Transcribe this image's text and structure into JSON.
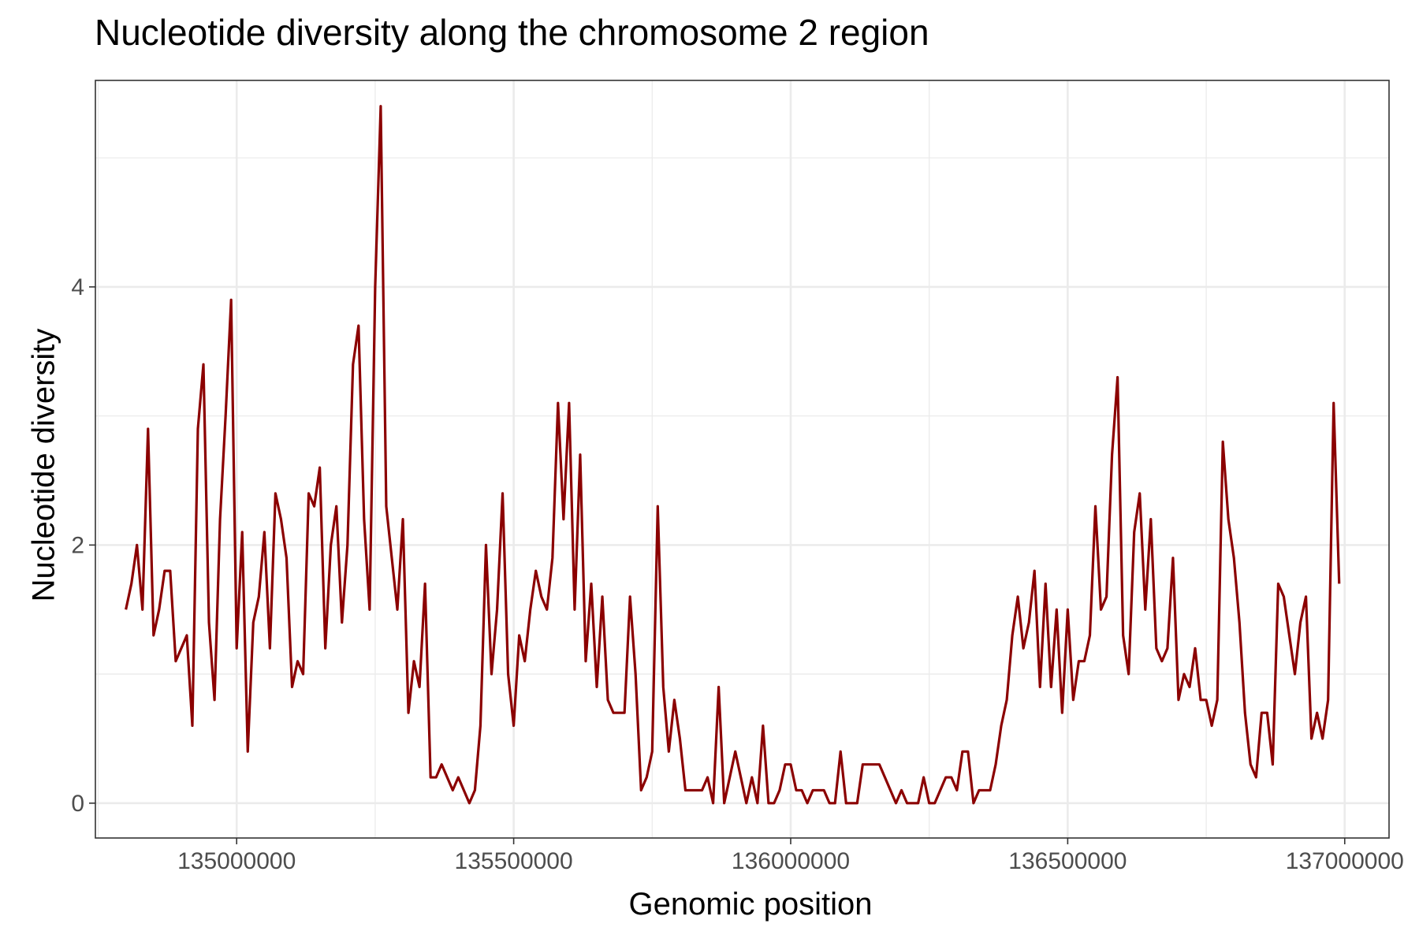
{
  "chart_data": {
    "type": "line",
    "title": "Nucleotide diversity along the chromosome 2 region",
    "xlabel": "Genomic position",
    "ylabel": "Nucleotide diversity",
    "xlim": [
      134745000,
      137080000
    ],
    "ylim": [
      -0.27,
      5.6
    ],
    "x_ticks": [
      135000000,
      135500000,
      136000000,
      136500000,
      137000000
    ],
    "x_tick_labels": [
      "135000000",
      "135500000",
      "136000000",
      "136500000",
      "137000000"
    ],
    "y_ticks": [
      0,
      2,
      4
    ],
    "y_tick_labels": [
      "0",
      "2",
      "4"
    ],
    "grid": true,
    "legend": "none",
    "series": [
      {
        "color": "#8b0000",
        "x_start": 134800000,
        "x_step": 10000,
        "values": [
          1.5,
          1.7,
          2.0,
          1.5,
          2.9,
          1.3,
          1.5,
          1.8,
          1.8,
          1.1,
          1.2,
          1.3,
          0.6,
          2.9,
          3.4,
          1.4,
          0.8,
          2.2,
          3.0,
          3.9,
          1.2,
          2.1,
          0.4,
          1.4,
          1.6,
          2.1,
          1.2,
          2.4,
          2.2,
          1.9,
          0.9,
          1.1,
          1.0,
          2.4,
          2.3,
          2.6,
          1.2,
          2.0,
          2.3,
          1.4,
          2.0,
          3.4,
          3.7,
          2.2,
          1.5,
          4.0,
          5.4,
          2.3,
          1.9,
          1.5,
          2.2,
          0.7,
          1.1,
          0.9,
          1.7,
          0.2,
          0.2,
          0.3,
          0.2,
          0.1,
          0.2,
          0.1,
          0.0,
          0.1,
          0.6,
          2.0,
          1.0,
          1.5,
          2.4,
          1.0,
          0.6,
          1.3,
          1.1,
          1.5,
          1.8,
          1.6,
          1.5,
          1.9,
          3.1,
          2.2,
          3.1,
          1.5,
          2.7,
          1.1,
          1.7,
          0.9,
          1.6,
          0.8,
          0.7,
          0.7,
          0.7,
          1.6,
          1.0,
          0.1,
          0.2,
          0.4,
          2.3,
          0.9,
          0.4,
          0.8,
          0.5,
          0.1,
          0.1,
          0.1,
          0.1,
          0.2,
          0.0,
          0.9,
          0.0,
          0.2,
          0.4,
          0.2,
          0.0,
          0.2,
          0.0,
          0.6,
          0.0,
          0.0,
          0.1,
          0.3,
          0.3,
          0.1,
          0.1,
          0.0,
          0.1,
          0.1,
          0.1,
          0.0,
          0.0,
          0.4,
          0.0,
          0.0,
          0.0,
          0.3,
          0.3,
          0.3,
          0.3,
          0.2,
          0.1,
          0.0,
          0.1,
          0.0,
          0.0,
          0.0,
          0.2,
          0.0,
          0.0,
          0.1,
          0.2,
          0.2,
          0.1,
          0.4,
          0.4,
          0.0,
          0.1,
          0.1,
          0.1,
          0.3,
          0.6,
          0.8,
          1.3,
          1.6,
          1.2,
          1.4,
          1.8,
          0.9,
          1.7,
          0.9,
          1.5,
          0.7,
          1.5,
          0.8,
          1.1,
          1.1,
          1.3,
          2.3,
          1.5,
          1.6,
          2.7,
          3.3,
          1.3,
          1.0,
          2.1,
          2.4,
          1.5,
          2.2,
          1.2,
          1.1,
          1.2,
          1.9,
          0.8,
          1.0,
          0.9,
          1.2,
          0.8,
          0.8,
          0.6,
          0.8,
          2.8,
          2.2,
          1.9,
          1.4,
          0.7,
          0.3,
          0.2,
          0.7,
          0.7,
          0.3,
          1.7,
          1.6,
          1.3,
          1.0,
          1.4,
          1.6,
          0.5,
          0.7,
          0.5,
          0.8,
          3.1,
          1.7
        ]
      }
    ]
  }
}
